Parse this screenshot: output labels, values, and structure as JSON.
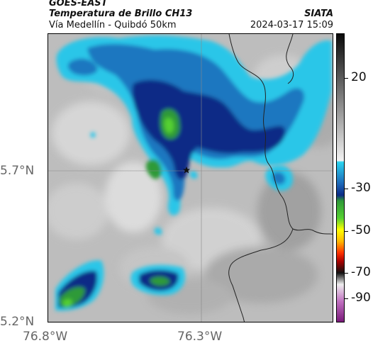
{
  "header": {
    "title_line1": "GOES-EAST",
    "title_line2": "Temperatura de Brillo CH13",
    "route": "Vía Medellín - Quibdó 50km",
    "source": "SIATA",
    "timestamp": "2024-03-17 15:09"
  },
  "axes": {
    "lat_labels": [
      "5.7°N",
      "5.2°N"
    ],
    "lon_labels": [
      "76.8°W",
      "76.3°W"
    ]
  },
  "colorbar": {
    "labels": [
      "20",
      "-30",
      "-50",
      "-70",
      "-90"
    ],
    "values": [
      20,
      -30,
      -50,
      -70,
      -90
    ]
  },
  "map": {
    "marker_icon": "star-icon",
    "colors": {
      "clear": "#bdbdbd",
      "cloud_cyan": "#29c6e8",
      "cloud_blue": "#1e77c0",
      "cloud_navy": "#0c2a86",
      "cloud_green": "#2f9a38",
      "cloud_lime": "#55d032",
      "border_line": "#222222",
      "gridline": "#888888"
    }
  }
}
